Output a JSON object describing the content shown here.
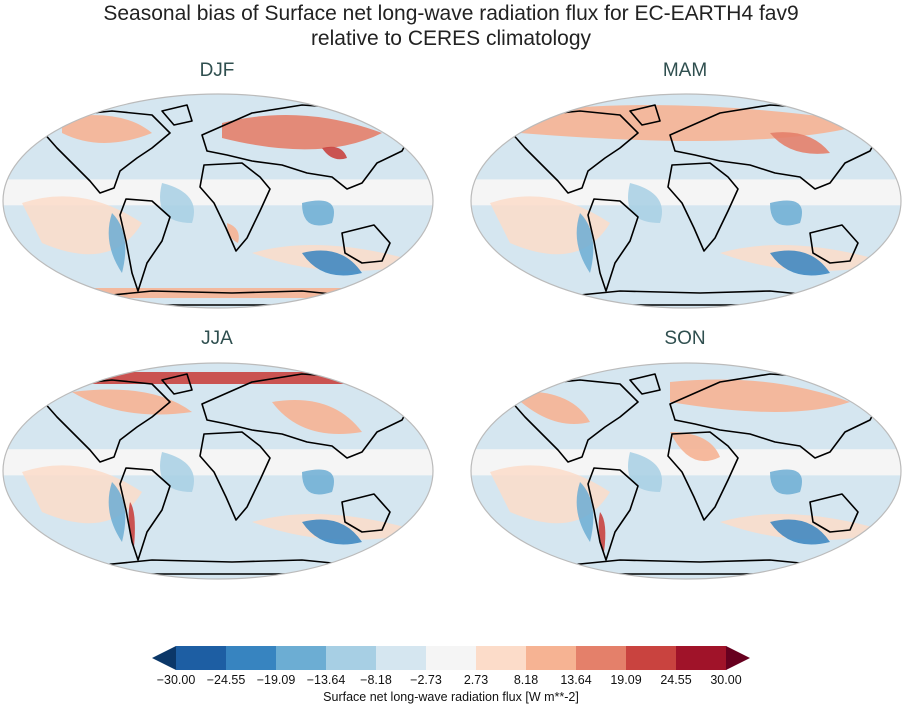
{
  "title_line1": "Seasonal bias of Surface net long-wave radiation flux for EC-EARTH4 fav9",
  "title_line2": "relative to CERES climatology",
  "panels": [
    {
      "label": "DJF"
    },
    {
      "label": "MAM"
    },
    {
      "label": "JJA"
    },
    {
      "label": "SON"
    }
  ],
  "colorbar": {
    "label": "Surface net long-wave radiation flux [W m**-2]",
    "ticks": [
      "−30.00",
      "−24.55",
      "−19.09",
      "−13.64",
      "−8.18",
      "−2.73",
      "2.73",
      "8.18",
      "13.64",
      "19.09",
      "24.55",
      "30.00"
    ],
    "colors": [
      "#1d5ea3",
      "#3784c0",
      "#6cadd3",
      "#a7cfe4",
      "#d5e6f0",
      "#f5f5f5",
      "#fcdcc9",
      "#f6b393",
      "#e4806a",
      "#c9433f",
      "#a01329"
    ],
    "under_color": "#0b3768",
    "over_color": "#67001f",
    "extend": "both"
  }
}
